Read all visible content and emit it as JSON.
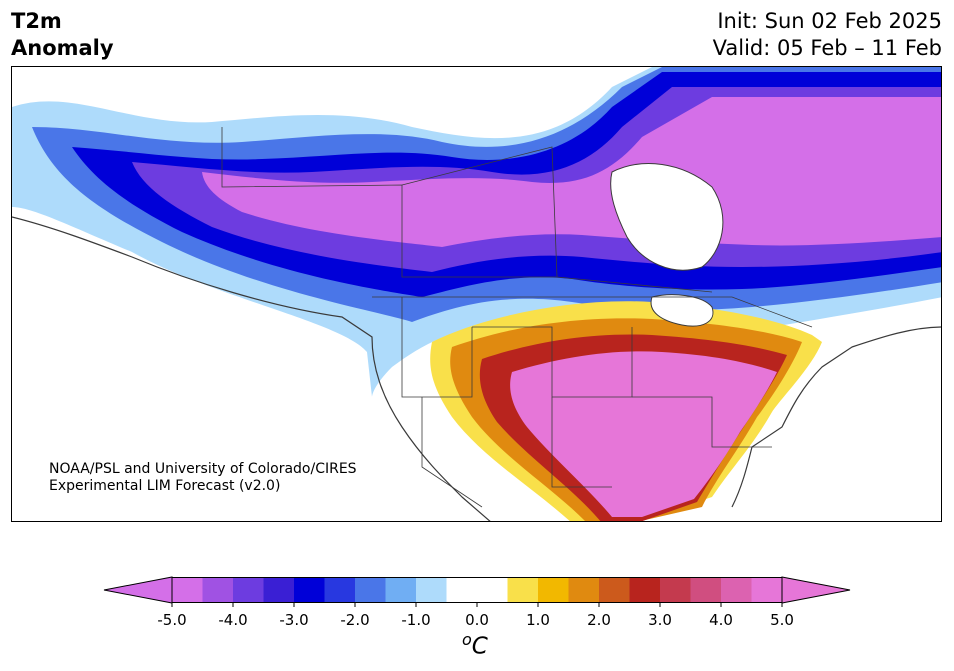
{
  "title": {
    "line1": "T2m",
    "line2": "Anomaly"
  },
  "dates": {
    "init": "Init: Sun 02 Feb 2025",
    "valid": "Valid: 05 Feb – 11 Feb"
  },
  "credit": {
    "line1": "NOAA/PSL and University of Colorado/CIRES",
    "line2": "Experimental LIM Forecast (v2.0)"
  },
  "colorbar": {
    "unit_prefix": "o",
    "unit_main": "C",
    "tick_labels": [
      "-5.0",
      "-4.0",
      "-3.0",
      "-2.0",
      "-1.0",
      "0.0",
      "1.0",
      "2.0",
      "3.0",
      "4.0",
      "5.0"
    ],
    "colors": [
      "#d46fe8",
      "#a052e3",
      "#6d3ce0",
      "#3a1fd4",
      "#0000d8",
      "#2838e0",
      "#4a76e8",
      "#70aef3",
      "#aedbfb",
      "#ffffff",
      "#ffffff",
      "#f9e04a",
      "#f2b800",
      "#e08a10",
      "#cc5a1c",
      "#b8241e",
      "#c43a4e",
      "#d04e80",
      "#dc62b0",
      "#e676d8"
    ],
    "extend_low_color": "#d46fe8",
    "extend_high_color": "#e676d8"
  },
  "map": {
    "land_color": "#ffffff",
    "border_color": "#3a3a3a"
  }
}
